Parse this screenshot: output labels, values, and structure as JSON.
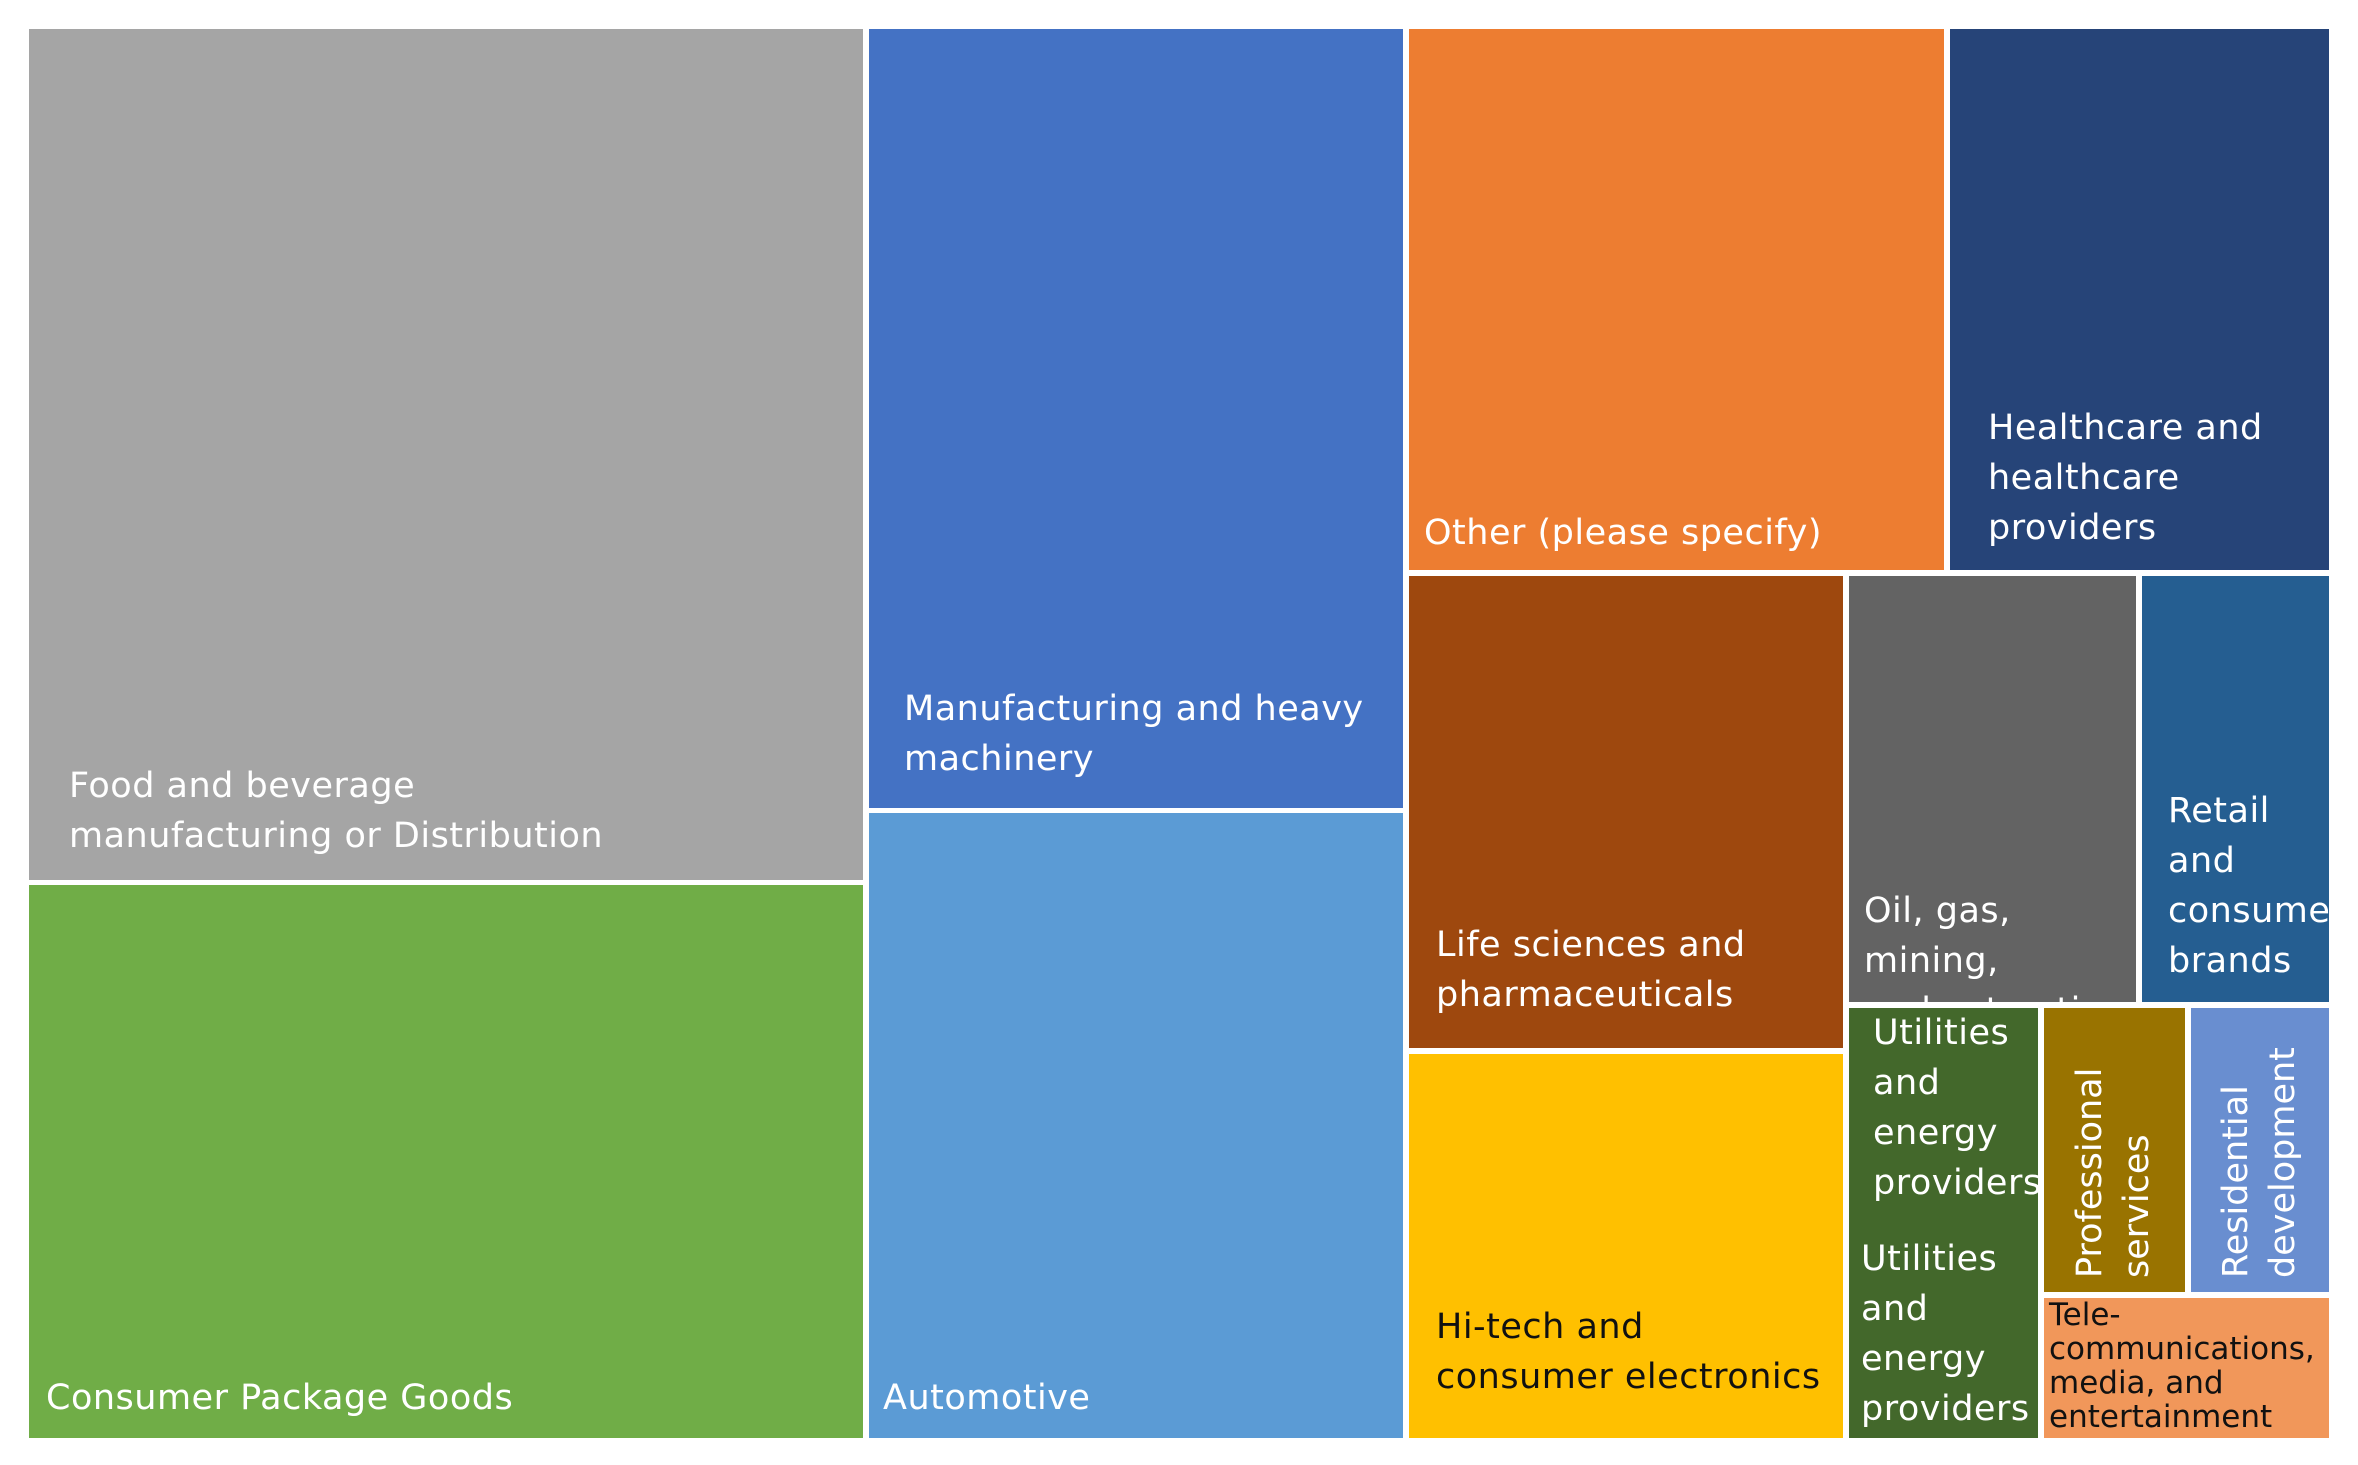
{
  "chart_data": {
    "type": "treemap",
    "colors": {
      "light_text": "#ffffff",
      "dark_text": "#111111"
    },
    "segments": [
      {
        "key": "food",
        "label": "Food and beverage\nmanufacturing or Distribution",
        "value": 22.6,
        "color": "#a5a5a5",
        "text": "light"
      },
      {
        "key": "cpg",
        "label": "Consumer Package Goods",
        "value": 16.6,
        "color": "#70ad47",
        "text": "light"
      },
      {
        "key": "manufacturing",
        "label": "Manufacturing and heavy\nmachinery",
        "value": 13.4,
        "color": "#4472c4",
        "text": "light"
      },
      {
        "key": "automotive",
        "label": "Automotive",
        "value": 10.9,
        "color": "#5b9bd5",
        "text": "light"
      },
      {
        "key": "other",
        "label": "Other (please specify)",
        "value": 9.1,
        "color": "#ed7d31",
        "text": "light"
      },
      {
        "key": "healthcare",
        "label": "Healthcare and\nhealthcare\nproviders",
        "value": 6.5,
        "color": "#264478",
        "text": "light"
      },
      {
        "key": "lifesciences",
        "label": "Life sciences and\npharmaceuticals",
        "value": 6.6,
        "color": "#9e480e",
        "text": "light"
      },
      {
        "key": "hitech",
        "label": "Hi-tech and\nconsumer electronics",
        "value": 5.2,
        "color": "#ffc000",
        "text": "dark"
      },
      {
        "key": "oilgas",
        "label": "Oil, gas, mining,\nand extraction",
        "value": 3.9,
        "color": "#636363",
        "text": "light"
      },
      {
        "key": "retail",
        "label": "Retail\nand\nconsumer\nbrands",
        "value": 2.7,
        "color": "#255e91",
        "text": "light"
      },
      {
        "key": "utilities",
        "label": "Utilities\nand\nenergy\nproviders",
        "value": 2.6,
        "color": "#43682b",
        "text": "light",
        "second_label": "Utilities\nand\nenergy\nproviders"
      },
      {
        "key": "professional",
        "label": "Professional\nservices",
        "value": 1.3,
        "color": "#997300",
        "text": "light",
        "vertical": true
      },
      {
        "key": "residential",
        "label": "Residential\ndevelopment",
        "value": 1.3,
        "color": "#698ed0",
        "text": "light",
        "vertical": true
      },
      {
        "key": "telecom",
        "label": "Tele-\ncommunications,\nmedia, and\nentertainment",
        "value": 1.1,
        "color": "#f1975a",
        "text": "dark"
      }
    ]
  }
}
